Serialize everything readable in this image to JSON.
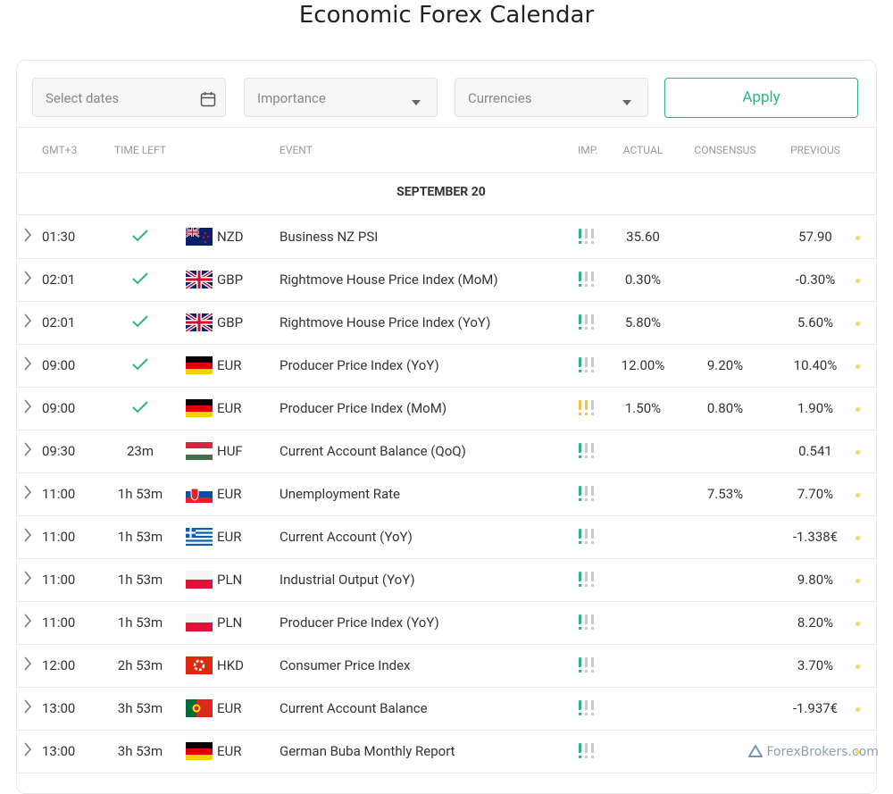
{
  "title": "Economic Forex Calendar",
  "filters": {
    "dates": "Select dates",
    "importance": "Importance",
    "currencies": "Currencies",
    "apply": "Apply"
  },
  "columns": [
    "GMT+3",
    "TIME LEFT",
    "EVENT",
    "IMP.",
    "ACTUAL",
    "CONSENSUS",
    "PREVIOUS"
  ],
  "date": "SEPTEMBER 20",
  "rows": [
    {
      "time": "01:30",
      "time_left": null,
      "flag": "nz",
      "currency": "NZD",
      "event": "Business NZ PSI",
      "importance": 1,
      "actual": "35.60",
      "consensus": null,
      "previous": "57.90"
    },
    {
      "time": "02:01",
      "time_left": null,
      "flag": "gb",
      "currency": "GBP",
      "event": "Rightmove House Price Index (MoM)",
      "importance": 1,
      "actual": "0.30%",
      "consensus": null,
      "previous": "-0.30%"
    },
    {
      "time": "02:01",
      "time_left": null,
      "flag": "gb",
      "currency": "GBP",
      "event": "Rightmove House Price Index (YoY)",
      "importance": 1,
      "actual": "5.80%",
      "consensus": null,
      "previous": "5.60%"
    },
    {
      "time": "09:00",
      "time_left": null,
      "flag": "de",
      "currency": "EUR",
      "event": "Producer Price Index (YoY)",
      "importance": 1,
      "actual": "12.00%",
      "consensus": "9.20%",
      "previous": "10.40%"
    },
    {
      "time": "09:00",
      "time_left": null,
      "flag": "de",
      "currency": "EUR",
      "event": "Producer Price Index (MoM)",
      "importance": 2,
      "actual": "1.50%",
      "consensus": "0.80%",
      "previous": "1.90%"
    },
    {
      "time": "09:30",
      "time_left": "23m",
      "flag": "hu",
      "currency": "HUF",
      "event": "Current Account Balance (QoQ)",
      "importance": 1,
      "actual": null,
      "consensus": null,
      "previous": "0.541"
    },
    {
      "time": "11:00",
      "time_left": "1h 53m",
      "flag": "sk",
      "currency": "EUR",
      "event": "Unemployment Rate",
      "importance": 1,
      "actual": null,
      "consensus": "7.53%",
      "previous": "7.70%"
    },
    {
      "time": "11:00",
      "time_left": "1h 53m",
      "flag": "gr",
      "currency": "EUR",
      "event": "Current Account (YoY)",
      "importance": 1,
      "actual": null,
      "consensus": null,
      "previous": "-1.338€"
    },
    {
      "time": "11:00",
      "time_left": "1h 53m",
      "flag": "pl",
      "currency": "PLN",
      "event": "Industrial Output (YoY)",
      "importance": 1,
      "actual": null,
      "consensus": null,
      "previous": "9.80%"
    },
    {
      "time": "11:00",
      "time_left": "1h 53m",
      "flag": "pl",
      "currency": "PLN",
      "event": "Producer Price Index (YoY)",
      "importance": 1,
      "actual": null,
      "consensus": null,
      "previous": "8.20%"
    },
    {
      "time": "12:00",
      "time_left": "2h 53m",
      "flag": "hk",
      "currency": "HKD",
      "event": "Consumer Price Index",
      "importance": 1,
      "actual": null,
      "consensus": null,
      "previous": "3.70%"
    },
    {
      "time": "13:00",
      "time_left": "3h 53m",
      "flag": "pt",
      "currency": "EUR",
      "event": "Current Account Balance",
      "importance": 1,
      "actual": null,
      "consensus": null,
      "previous": "-1.937€"
    },
    {
      "time": "13:00",
      "time_left": "3h 53m",
      "flag": "de",
      "currency": "EUR",
      "event": "German Buba Monthly Report",
      "importance": 1,
      "actual": null,
      "consensus": null,
      "previous": null
    }
  ],
  "watermark": "ForexBrokers.com"
}
